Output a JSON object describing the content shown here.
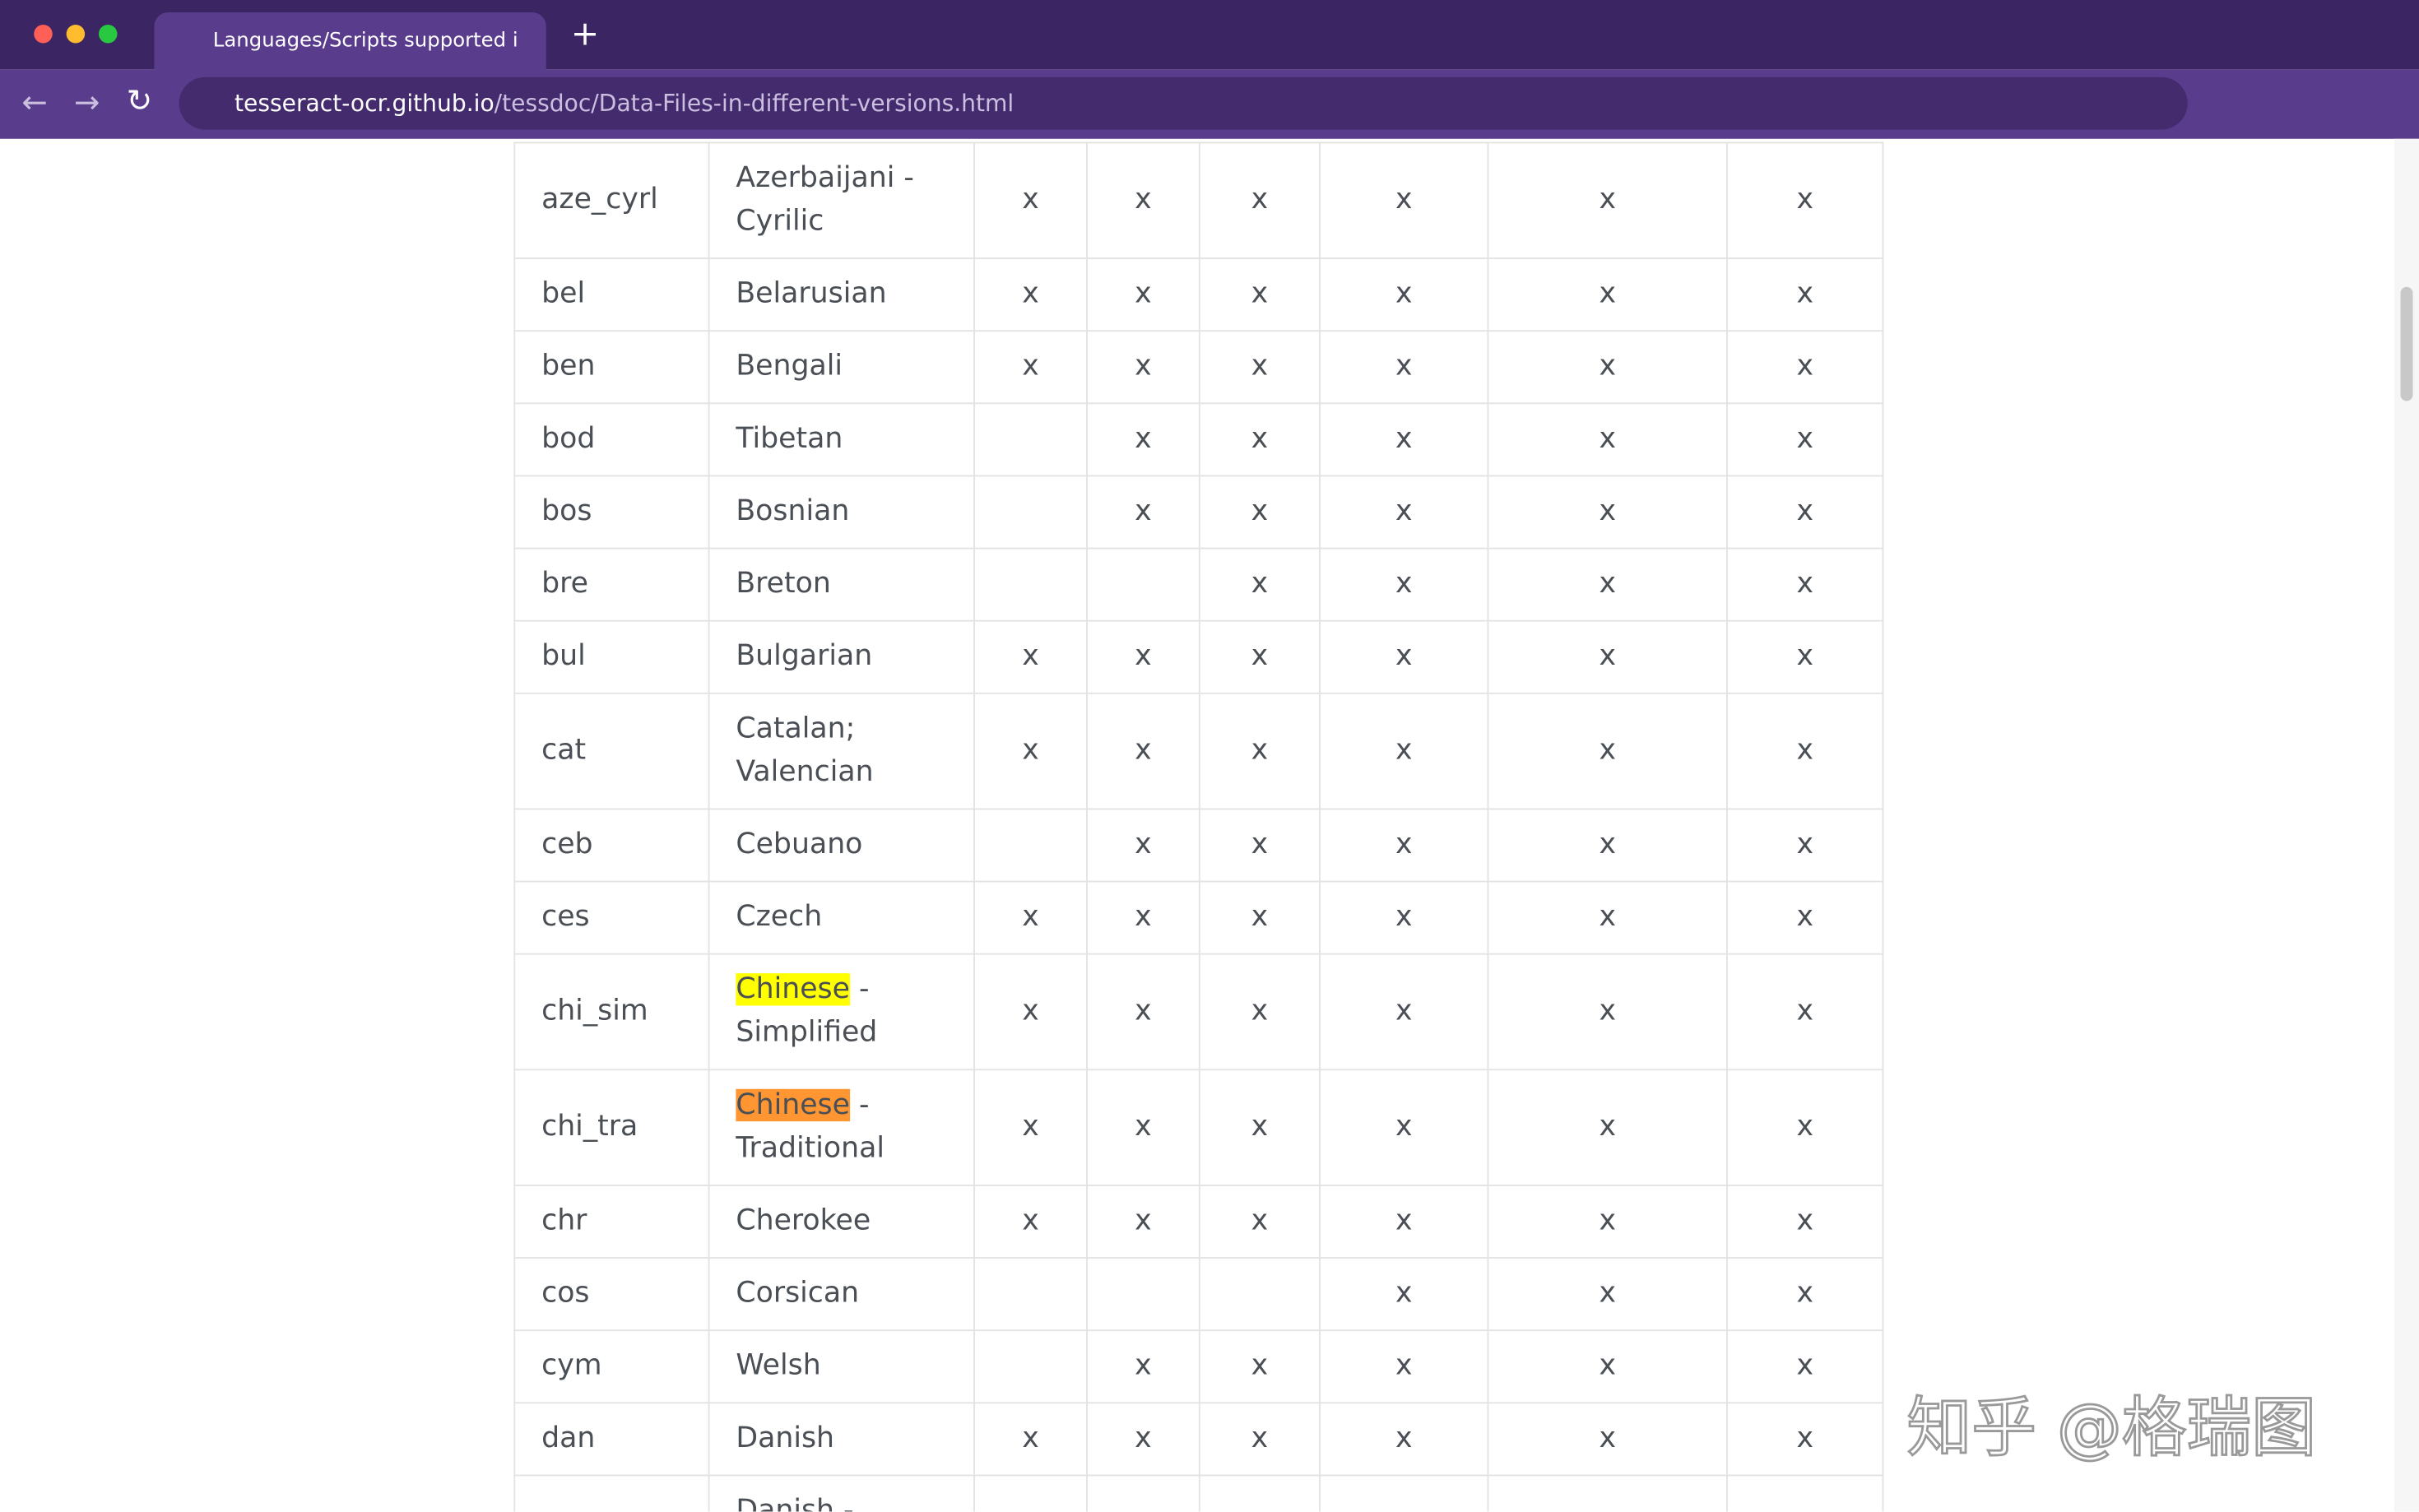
{
  "browser": {
    "tab_title": "Languages/Scripts supported i",
    "url_host": "tesseract-ocr.github.io",
    "url_path": "/tessdoc/Data-Files-in-different-versions.html"
  },
  "table": {
    "rows": [
      {
        "code": "aze_cyrl",
        "name": "Azerbaijani - Cyrilic",
        "cells": [
          "x",
          "x",
          "x",
          "x",
          "x",
          "x"
        ]
      },
      {
        "code": "bel",
        "name": "Belarusian",
        "cells": [
          "x",
          "x",
          "x",
          "x",
          "x",
          "x"
        ]
      },
      {
        "code": "ben",
        "name": "Bengali",
        "cells": [
          "x",
          "x",
          "x",
          "x",
          "x",
          "x"
        ]
      },
      {
        "code": "bod",
        "name": "Tibetan",
        "cells": [
          null,
          "x",
          "x",
          "x",
          "x",
          "x"
        ]
      },
      {
        "code": "bos",
        "name": "Bosnian",
        "cells": [
          null,
          "x",
          "x",
          "x",
          "x",
          "x"
        ]
      },
      {
        "code": "bre",
        "name": "Breton",
        "cells": [
          null,
          null,
          "x",
          "x",
          "x",
          "x"
        ]
      },
      {
        "code": "bul",
        "name": "Bulgarian",
        "cells": [
          "x",
          "x",
          "x",
          "x",
          "x",
          "x"
        ]
      },
      {
        "code": "cat",
        "name": "Catalan; Valencian",
        "cells": [
          "x",
          "x",
          "x",
          "x",
          "x",
          "x"
        ]
      },
      {
        "code": "ceb",
        "name": "Cebuano",
        "cells": [
          null,
          "x",
          "x",
          "x",
          "x",
          "x"
        ]
      },
      {
        "code": "ces",
        "name": "Czech",
        "cells": [
          "x",
          "x",
          "x",
          "x",
          "x",
          "x"
        ]
      },
      {
        "code": "chi_sim",
        "name": {
          "mark": "Chinese",
          "rest": " - Simplified",
          "color": "#ffff00"
        },
        "cells": [
          "x",
          "x",
          "x",
          "x",
          "x",
          "x"
        ]
      },
      {
        "code": "chi_tra",
        "name": {
          "mark": "Chinese",
          "rest": " - Traditional",
          "color": "#ff9632"
        },
        "cells": [
          "x",
          "x",
          "x",
          "x",
          "x",
          "x"
        ]
      },
      {
        "code": "chr",
        "name": "Cherokee",
        "cells": [
          "x",
          "x",
          "x",
          "x",
          "x",
          "x"
        ]
      },
      {
        "code": "cos",
        "name": "Corsican",
        "cells": [
          null,
          null,
          null,
          "x",
          "x",
          "x"
        ]
      },
      {
        "code": "cym",
        "name": "Welsh",
        "cells": [
          null,
          "x",
          "x",
          "x",
          "x",
          "x"
        ]
      },
      {
        "code": "dan",
        "name": "Danish",
        "cells": [
          "x",
          "x",
          "x",
          "x",
          "x",
          "x"
        ]
      },
      {
        "code": null,
        "name": "Danish -",
        "cells": [
          null,
          null,
          null,
          null,
          null,
          null
        ]
      }
    ]
  },
  "watermark": "知乎 @格瑞图"
}
